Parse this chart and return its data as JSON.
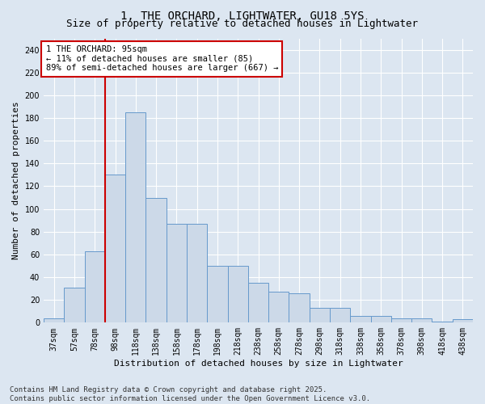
{
  "title_line1": "1, THE ORCHARD, LIGHTWATER, GU18 5YS",
  "title_line2": "Size of property relative to detached houses in Lightwater",
  "xlabel": "Distribution of detached houses by size in Lightwater",
  "ylabel": "Number of detached properties",
  "categories": [
    "37sqm",
    "57sqm",
    "78sqm",
    "98sqm",
    "118sqm",
    "138sqm",
    "158sqm",
    "178sqm",
    "198sqm",
    "218sqm",
    "238sqm",
    "258sqm",
    "278sqm",
    "298sqm",
    "318sqm",
    "338sqm",
    "358sqm",
    "378sqm",
    "398sqm",
    "418sqm",
    "438sqm"
  ],
  "values": [
    4,
    31,
    63,
    130,
    185,
    110,
    87,
    87,
    50,
    50,
    35,
    27,
    26,
    13,
    13,
    6,
    6,
    4,
    4,
    1,
    3
  ],
  "bar_color": "#ccd9e8",
  "bar_edge_color": "#6699cc",
  "background_color": "#dce6f1",
  "vline_x_index": 3,
  "vline_color": "#cc0000",
  "annotation_text": "1 THE ORCHARD: 95sqm\n← 11% of detached houses are smaller (85)\n89% of semi-detached houses are larger (667) →",
  "annotation_box_color": "#ffffff",
  "annotation_box_edge": "#cc0000",
  "ylim": [
    0,
    250
  ],
  "yticks": [
    0,
    20,
    40,
    60,
    80,
    100,
    120,
    140,
    160,
    180,
    200,
    220,
    240
  ],
  "footnote": "Contains HM Land Registry data © Crown copyright and database right 2025.\nContains public sector information licensed under the Open Government Licence v3.0.",
  "footnote_fontsize": 6.5,
  "title_fontsize1": 10,
  "title_fontsize2": 9,
  "xlabel_fontsize": 8,
  "ylabel_fontsize": 8,
  "tick_fontsize": 7,
  "annot_fontsize": 7.5
}
